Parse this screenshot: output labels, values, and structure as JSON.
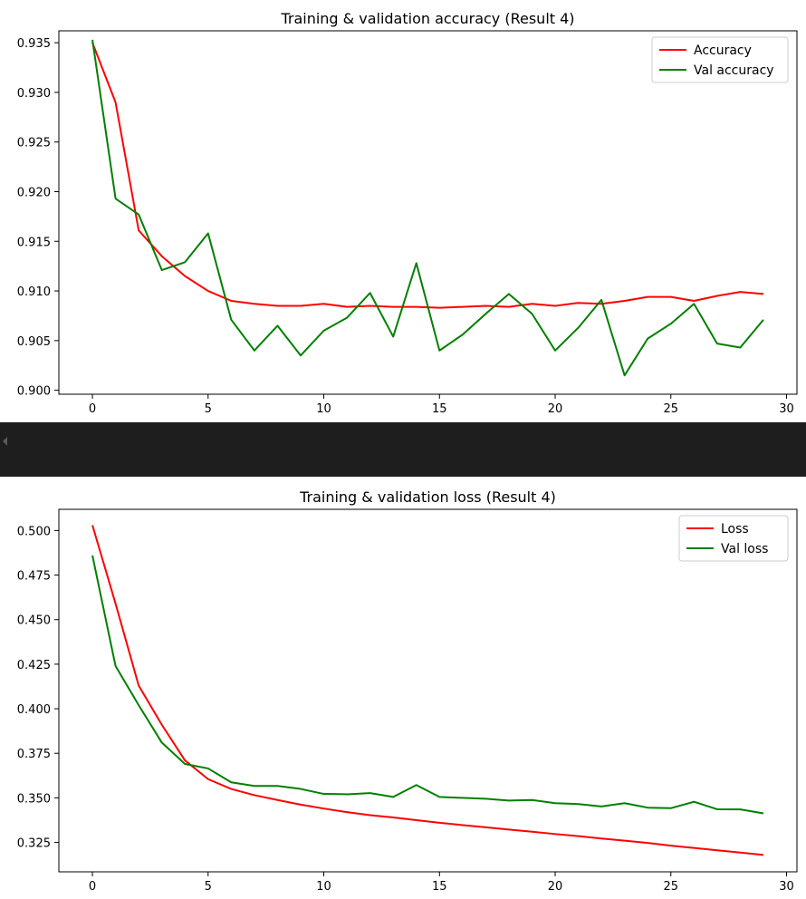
{
  "chart_data": [
    {
      "type": "line",
      "title": "Training & validation accuracy (Result 4)",
      "xlabel": "",
      "ylabel": "",
      "x": [
        0,
        1,
        2,
        3,
        4,
        5,
        6,
        7,
        8,
        9,
        10,
        11,
        12,
        13,
        14,
        15,
        16,
        17,
        18,
        19,
        20,
        21,
        22,
        23,
        24,
        25,
        26,
        27,
        28,
        29
      ],
      "xlim": [
        -1.45,
        30.45
      ],
      "ylim": [
        0.8996,
        0.9362
      ],
      "xticks": [
        0,
        5,
        10,
        15,
        20,
        25,
        30
      ],
      "yticks": [
        0.9,
        0.905,
        0.91,
        0.915,
        0.92,
        0.925,
        0.93,
        0.935
      ],
      "ytick_labels": [
        "0.900",
        "0.905",
        "0.910",
        "0.915",
        "0.920",
        "0.925",
        "0.930",
        "0.935"
      ],
      "grid": false,
      "legend": "upper right",
      "series": [
        {
          "name": "Accuracy",
          "color": "#ff0000",
          "values": [
            0.935,
            0.929,
            0.9161,
            0.9135,
            0.9115,
            0.91,
            0.909,
            0.9087,
            0.9085,
            0.9085,
            0.9087,
            0.9084,
            0.9085,
            0.9084,
            0.9084,
            0.9083,
            0.9084,
            0.9085,
            0.9084,
            0.9087,
            0.9085,
            0.9088,
            0.9087,
            0.909,
            0.9094,
            0.9094,
            0.909,
            0.9095,
            0.9099,
            0.9097
          ]
        },
        {
          "name": "Val accuracy",
          "color": "#008000",
          "values": [
            0.9353,
            0.9193,
            0.9177,
            0.9121,
            0.9129,
            0.9158,
            0.9071,
            0.904,
            0.9065,
            0.9035,
            0.906,
            0.9073,
            0.9098,
            0.9054,
            0.9128,
            0.904,
            0.9056,
            0.9077,
            0.9097,
            0.9077,
            0.904,
            0.9063,
            0.9091,
            0.9015,
            0.9052,
            0.9067,
            0.9087,
            0.9047,
            0.9043,
            0.9071
          ]
        }
      ]
    },
    {
      "type": "line",
      "title": "Training & validation loss (Result 4)",
      "xlabel": "",
      "ylabel": "",
      "x": [
        0,
        1,
        2,
        3,
        4,
        5,
        6,
        7,
        8,
        9,
        10,
        11,
        12,
        13,
        14,
        15,
        16,
        17,
        18,
        19,
        20,
        21,
        22,
        23,
        24,
        25,
        26,
        27,
        28,
        29
      ],
      "xlim": [
        -1.45,
        30.45
      ],
      "ylim": [
        0.3085,
        0.5119
      ],
      "xticks": [
        0,
        5,
        10,
        15,
        20,
        25,
        30
      ],
      "yticks": [
        0.325,
        0.35,
        0.375,
        0.4,
        0.425,
        0.45,
        0.475,
        0.5
      ],
      "ytick_labels": [
        "0.325",
        "0.350",
        "0.375",
        "0.400",
        "0.425",
        "0.450",
        "0.475",
        "0.500"
      ],
      "grid": false,
      "legend": "upper right",
      "series": [
        {
          "name": "Loss",
          "color": "#ff0000",
          "values": [
            0.503,
            0.459,
            0.413,
            0.391,
            0.371,
            0.3605,
            0.355,
            0.3515,
            0.3488,
            0.3462,
            0.344,
            0.342,
            0.3403,
            0.339,
            0.3375,
            0.336,
            0.3347,
            0.3335,
            0.3322,
            0.331,
            0.3297,
            0.3285,
            0.3272,
            0.326,
            0.3247,
            0.3232,
            0.3219,
            0.3206,
            0.3193,
            0.318
          ]
        },
        {
          "name": "Val loss",
          "color": "#008000",
          "values": [
            0.486,
            0.424,
            0.402,
            0.381,
            0.369,
            0.3665,
            0.3587,
            0.3567,
            0.3567,
            0.355,
            0.3522,
            0.352,
            0.3527,
            0.3505,
            0.3572,
            0.3505,
            0.35,
            0.3495,
            0.3485,
            0.3488,
            0.347,
            0.3465,
            0.3452,
            0.347,
            0.3445,
            0.3442,
            0.3478,
            0.3436,
            0.3435,
            0.3413
          ]
        }
      ]
    }
  ]
}
